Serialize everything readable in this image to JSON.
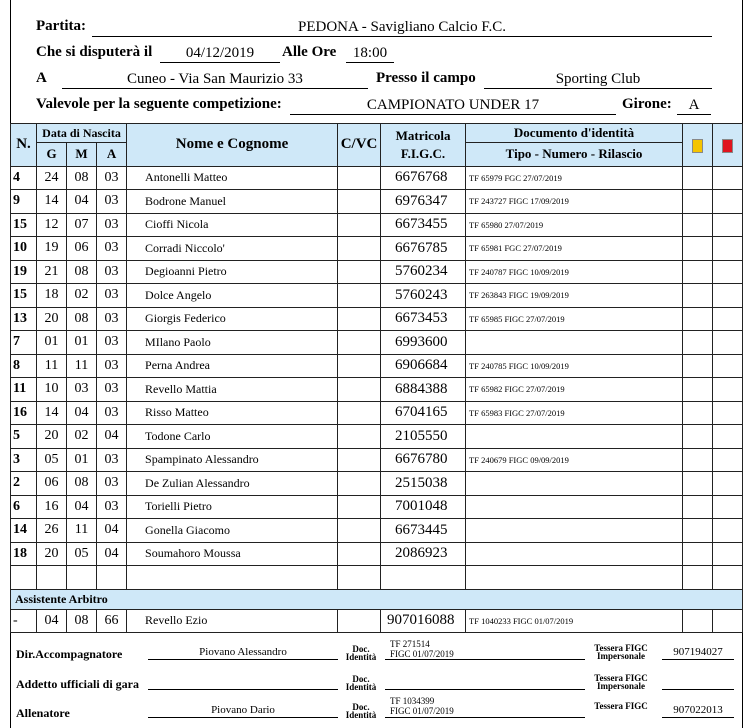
{
  "header": {
    "partita_label": "Partita:",
    "partita": "PEDONA - Savigliano Calcio F.C.",
    "disputera_label": "Che si disputerà il",
    "date": "04/12/2019",
    "ore_label": "Alle Ore",
    "time": "18:00",
    "a_label": "A",
    "location": "Cuneo - Via San Maurizio 33",
    "campo_label": "Presso il campo",
    "campo": "Sporting Club",
    "comp_label": "Valevole per la seguente competizione:",
    "competition": "CAMPIONATO UNDER 17",
    "girone_label": "Girone:",
    "girone": "A"
  },
  "table_headers": {
    "n": "N.",
    "data": "Data di Nascita",
    "g": "G",
    "m": "M",
    "a": "A",
    "name": "Nome e Cognome",
    "cvc": "C/VC",
    "mat1": "Matricola",
    "mat2": "F.I.G.C.",
    "doc1": "Documento d'identità",
    "doc2": "Tipo - Numero - Rilascio",
    "yellow_card": "#f5c400",
    "red_card": "#e0141e"
  },
  "players": [
    {
      "n": "4",
      "g": "24",
      "m": "08",
      "a": "03",
      "name": "Antonelli Matteo",
      "mat": "6676768",
      "doc": "TF  65979  FGC 27/07/2019"
    },
    {
      "n": "9",
      "g": "14",
      "m": "04",
      "a": "03",
      "name": "Bodrone Manuel",
      "mat": "6976347",
      "doc": "TF  243727  FIGC 17/09/2019"
    },
    {
      "n": "15",
      "g": "12",
      "m": "07",
      "a": "03",
      "name": "Cioffi Nicola",
      "mat": "6673455",
      "doc": "TF  65980  27/07/2019"
    },
    {
      "n": "10",
      "g": "19",
      "m": "06",
      "a": "03",
      "name": "Corradi Niccolo'",
      "mat": "6676785",
      "doc": "TF  65981  FGC 27/07/2019"
    },
    {
      "n": "19",
      "g": "21",
      "m": "08",
      "a": "03",
      "name": "Degioanni Pietro",
      "mat": "5760234",
      "doc": "TF  240787  FIGC 10/09/2019"
    },
    {
      "n": "15",
      "g": "18",
      "m": "02",
      "a": "03",
      "name": "Dolce Angelo",
      "mat": "5760243",
      "doc": "TF  263843  FIGC 19/09/2019"
    },
    {
      "n": "13",
      "g": "20",
      "m": "08",
      "a": "03",
      "name": "Giorgis Federico",
      "mat": "6673453",
      "doc": "TF  65985  FIGC 27/07/2019"
    },
    {
      "n": "7",
      "g": "01",
      "m": "01",
      "a": "03",
      "name": "MIlano Paolo",
      "mat": "6993600",
      "doc": ""
    },
    {
      "n": "8",
      "g": "11",
      "m": "11",
      "a": "03",
      "name": "Perna Andrea",
      "mat": "6906684",
      "doc": "TF  240785  FIGC 10/09/2019"
    },
    {
      "n": "11",
      "g": "10",
      "m": "03",
      "a": "03",
      "name": "Revello Mattia",
      "mat": "6884388",
      "doc": "TF  65982  FIGC 27/07/2019"
    },
    {
      "n": "16",
      "g": "14",
      "m": "04",
      "a": "03",
      "name": "Risso Matteo",
      "mat": "6704165",
      "doc": "TF  65983  FIGC 27/07/2019"
    },
    {
      "n": "5",
      "g": "20",
      "m": "02",
      "a": "04",
      "name": "Todone Carlo",
      "mat": "2105550",
      "doc": ""
    },
    {
      "n": "3",
      "g": "05",
      "m": "01",
      "a": "03",
      "name": "Spampinato Alessandro",
      "mat": "6676780",
      "doc": "TF  240679  FIGC 09/09/2019"
    },
    {
      "n": "2",
      "g": "06",
      "m": "08",
      "a": "03",
      "name": "De Zulian Alessandro",
      "mat": "2515038",
      "doc": ""
    },
    {
      "n": "6",
      "g": "16",
      "m": "04",
      "a": "03",
      "name": "Torielli Pietro",
      "mat": "7001048",
      "doc": ""
    },
    {
      "n": "14",
      "g": "26",
      "m": "11",
      "a": "04",
      "name": "Gonella Giacomo",
      "mat": "6673445",
      "doc": ""
    },
    {
      "n": "18",
      "g": "20",
      "m": "05",
      "a": "04",
      "name": "Soumahoro Moussa",
      "mat": "2086923",
      "doc": ""
    },
    {
      "n": "",
      "g": "",
      "m": "",
      "a": "",
      "name": "",
      "mat": "",
      "doc": ""
    }
  ],
  "assistant": {
    "label": "Assistente Arbitro",
    "n": "-",
    "g": "04",
    "m": "08",
    "a": "66",
    "name": "Revello Ezio",
    "mat": "907016088",
    "doc": "TF  1040233  FIGC 01/07/2019"
  },
  "staff": {
    "doc_label": "Doc. Identità",
    "dir": {
      "label": "Dir.Accompagnatore",
      "name": "Piovano Alessandro",
      "doc1": "TF  271514",
      "doc2": "FIGC 01/07/2019",
      "tess_label": "Tessera FIGC Impersonale",
      "tess": "907194027"
    },
    "addetto": {
      "label": "Addetto ufficiali di gara",
      "name": "",
      "doc1": "",
      "doc2": "",
      "tess_label": "Tessera FIGC Impersonale",
      "tess": ""
    },
    "all": {
      "label": "Allenatore",
      "name": "Piovano Dario",
      "doc1": "TF  1034399",
      "doc2": "FIGC 01/07/2019",
      "tess_label": "Tessera FIGC",
      "tess": "907022013"
    }
  }
}
